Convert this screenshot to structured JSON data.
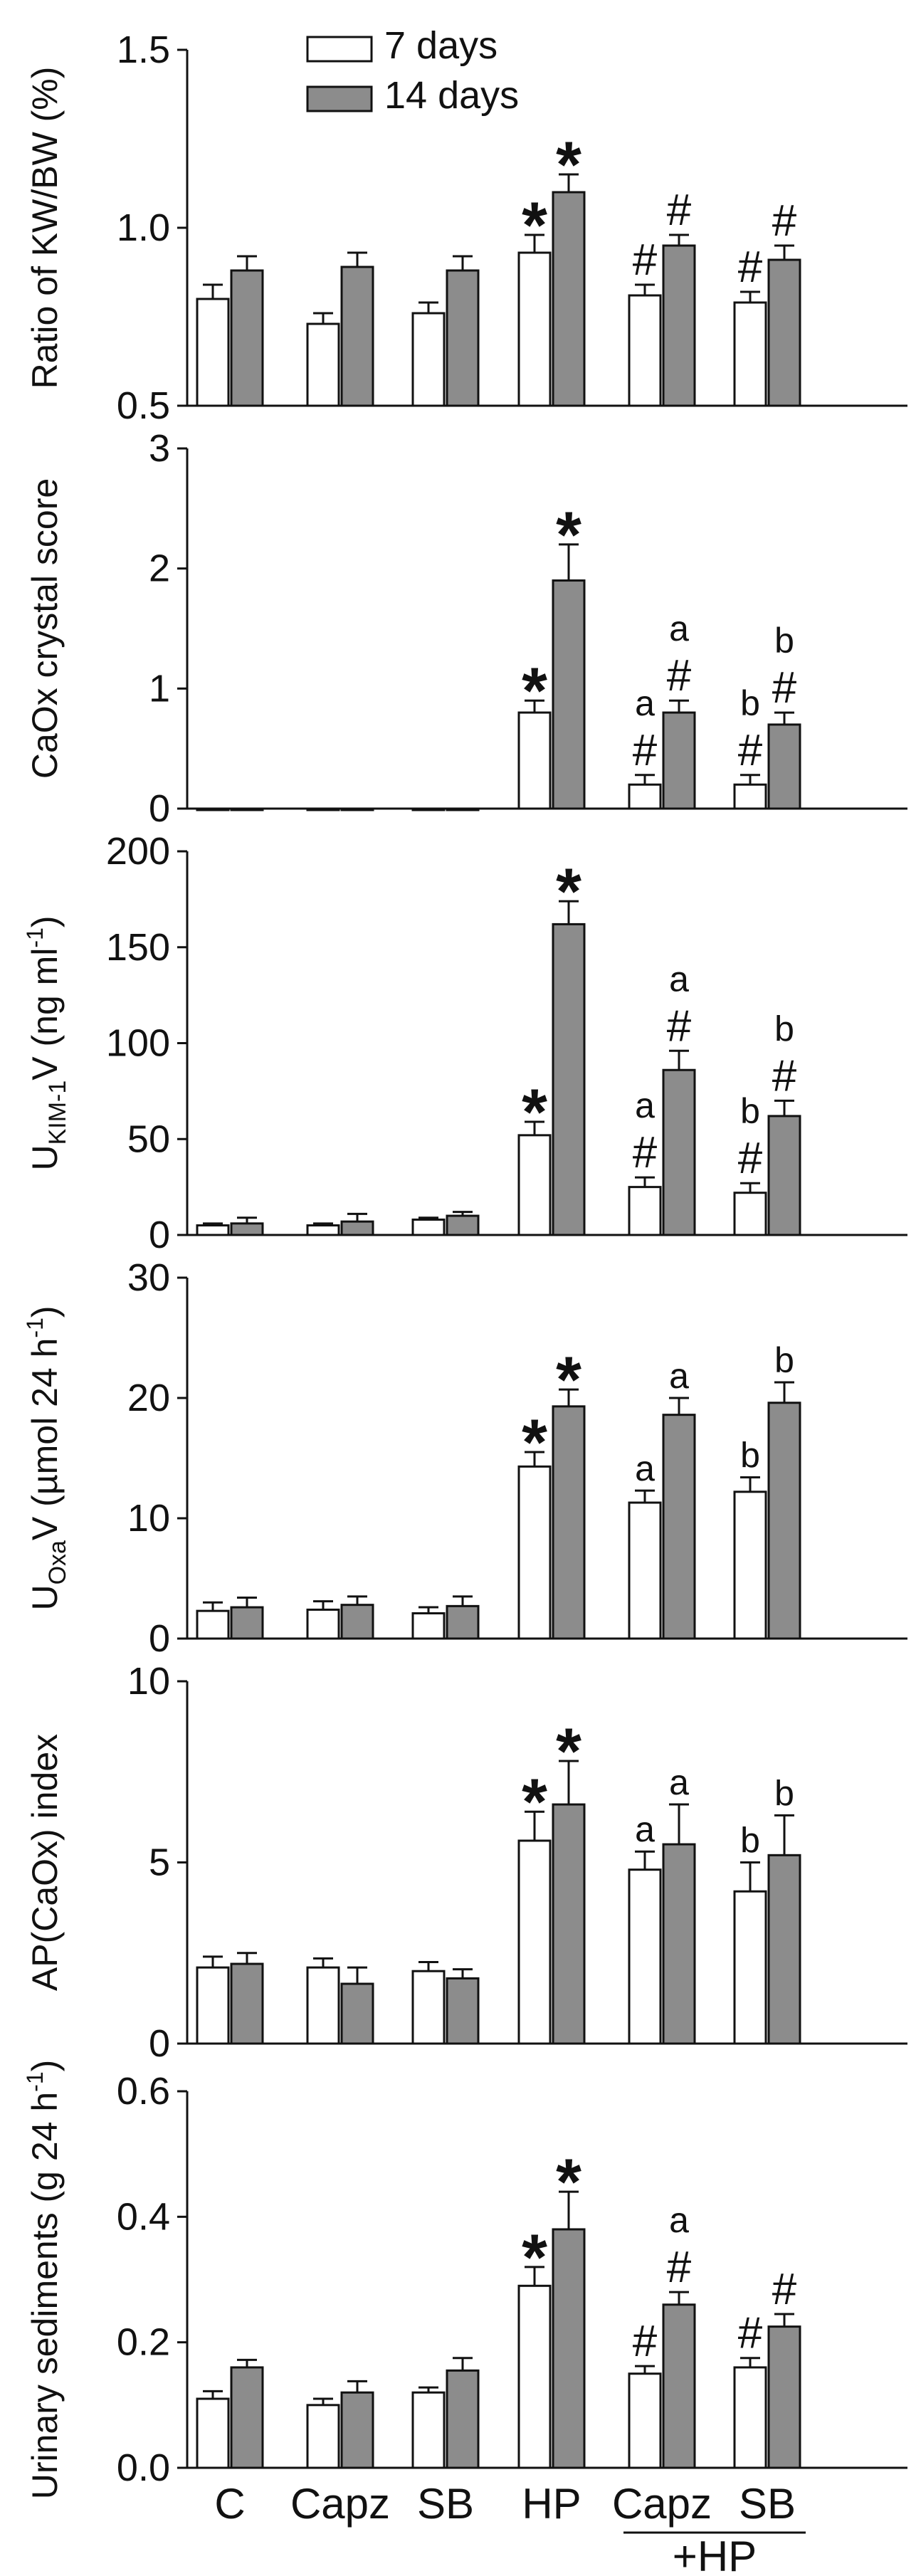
{
  "colors": {
    "series_7d": "#ffffff",
    "series_14d": "#8c8c8c",
    "stroke": "#111111"
  },
  "categories": [
    "C",
    "Capz",
    "SB",
    "HP",
    "Capz",
    "SB"
  ],
  "group_label": "+HP",
  "legend": [
    "7 days",
    "14 days"
  ],
  "chart_data": [
    {
      "type": "bar",
      "id": "kw",
      "ylabel": "Ratio of KW/BW (%)",
      "ylim": [
        0.5,
        1.5
      ],
      "yticks": [
        "0.5",
        "1.0",
        "1.5"
      ],
      "ytick_values": [
        0.5,
        1.0,
        1.5
      ],
      "series": [
        {
          "name": "7 days",
          "values": [
            0.8,
            0.73,
            0.76,
            0.93,
            0.81,
            0.79
          ],
          "errors": [
            0.04,
            0.03,
            0.03,
            0.05,
            0.03,
            0.03
          ]
        },
        {
          "name": "14 days",
          "values": [
            0.88,
            0.89,
            0.88,
            1.1,
            0.95,
            0.91
          ],
          "errors": [
            0.04,
            0.04,
            0.04,
            0.05,
            0.03,
            0.04
          ]
        }
      ],
      "annotations": [
        {
          "cat": 3,
          "series": 0,
          "marks": [
            "*"
          ]
        },
        {
          "cat": 3,
          "series": 1,
          "marks": [
            "*"
          ]
        },
        {
          "cat": 4,
          "series": 0,
          "marks": [
            "#"
          ]
        },
        {
          "cat": 4,
          "series": 1,
          "marks": [
            "#"
          ]
        },
        {
          "cat": 5,
          "series": 0,
          "marks": [
            "#"
          ]
        },
        {
          "cat": 5,
          "series": 1,
          "marks": [
            "#"
          ]
        }
      ]
    },
    {
      "type": "bar",
      "id": "crystal",
      "ylabel": "CaOx crystal score",
      "ylim": [
        0,
        3
      ],
      "yticks": [
        "0",
        "1",
        "2",
        "3"
      ],
      "ytick_values": [
        0,
        1,
        2,
        3
      ],
      "series": [
        {
          "name": "7 days",
          "values": [
            0,
            0,
            0,
            0.8,
            0.2,
            0.2
          ],
          "errors": [
            0,
            0,
            0,
            0.1,
            0.08,
            0.08
          ]
        },
        {
          "name": "14 days",
          "values": [
            0,
            0,
            0,
            1.9,
            0.8,
            0.7
          ],
          "errors": [
            0,
            0,
            0,
            0.3,
            0.1,
            0.1
          ]
        }
      ],
      "annotations": [
        {
          "cat": 3,
          "series": 0,
          "marks": [
            "*"
          ]
        },
        {
          "cat": 3,
          "series": 1,
          "marks": [
            "*"
          ]
        },
        {
          "cat": 4,
          "series": 0,
          "marks": [
            "#",
            "a"
          ]
        },
        {
          "cat": 4,
          "series": 1,
          "marks": [
            "#",
            "a"
          ]
        },
        {
          "cat": 5,
          "series": 0,
          "marks": [
            "#",
            "b"
          ]
        },
        {
          "cat": 5,
          "series": 1,
          "marks": [
            "#",
            "b"
          ]
        }
      ]
    },
    {
      "type": "bar",
      "id": "kim",
      "ylabel_main": "U",
      "ylabel_sub": "KIM-1",
      "ylabel_rest": "V (ng ml",
      "ylabel_sup": "-1",
      "ylabel_end": ")",
      "ylim": [
        0,
        200
      ],
      "yticks": [
        "0",
        "50",
        "100",
        "150",
        "200"
      ],
      "ytick_values": [
        0,
        50,
        100,
        150,
        200
      ],
      "series": [
        {
          "name": "7 days",
          "values": [
            5,
            5,
            8,
            52,
            25,
            22
          ],
          "errors": [
            1,
            1,
            1,
            7,
            5,
            5
          ]
        },
        {
          "name": "14 days",
          "values": [
            6,
            7,
            10,
            162,
            86,
            62
          ],
          "errors": [
            3,
            4,
            2,
            12,
            10,
            8
          ]
        }
      ],
      "annotations": [
        {
          "cat": 3,
          "series": 0,
          "marks": [
            "*"
          ]
        },
        {
          "cat": 3,
          "series": 1,
          "marks": [
            "*"
          ]
        },
        {
          "cat": 4,
          "series": 0,
          "marks": [
            "#",
            "a"
          ]
        },
        {
          "cat": 4,
          "series": 1,
          "marks": [
            "#",
            "a"
          ]
        },
        {
          "cat": 5,
          "series": 0,
          "marks": [
            "#",
            "b"
          ]
        },
        {
          "cat": 5,
          "series": 1,
          "marks": [
            "#",
            "b"
          ]
        }
      ]
    },
    {
      "type": "bar",
      "id": "oxa",
      "ylabel_main": "U",
      "ylabel_sub": "Oxa",
      "ylabel_rest": "V (µmol 24 h",
      "ylabel_sup": "-1",
      "ylabel_end": ")",
      "ylim": [
        0,
        30
      ],
      "yticks": [
        "0",
        "10",
        "20",
        "30"
      ],
      "ytick_values": [
        0,
        10,
        20,
        30
      ],
      "series": [
        {
          "name": "7 days",
          "values": [
            2.3,
            2.4,
            2.1,
            14.3,
            11.3,
            12.2
          ],
          "errors": [
            0.7,
            0.7,
            0.5,
            1.2,
            1.0,
            1.2
          ]
        },
        {
          "name": "14 days",
          "values": [
            2.6,
            2.8,
            2.7,
            19.3,
            18.6,
            19.6
          ],
          "errors": [
            0.8,
            0.7,
            0.8,
            1.4,
            1.4,
            1.7
          ]
        }
      ],
      "annotations": [
        {
          "cat": 3,
          "series": 0,
          "marks": [
            "*"
          ]
        },
        {
          "cat": 3,
          "series": 1,
          "marks": [
            "*"
          ]
        },
        {
          "cat": 4,
          "series": 0,
          "marks": [
            "a"
          ]
        },
        {
          "cat": 4,
          "series": 1,
          "marks": [
            "a"
          ]
        },
        {
          "cat": 5,
          "series": 0,
          "marks": [
            "b"
          ]
        },
        {
          "cat": 5,
          "series": 1,
          "marks": [
            "b"
          ]
        }
      ]
    },
    {
      "type": "bar",
      "id": "ap",
      "ylabel": "AP(CaOx) index",
      "ylim": [
        0,
        10
      ],
      "yticks": [
        "0",
        "5",
        "10"
      ],
      "ytick_values": [
        0,
        5,
        10
      ],
      "series": [
        {
          "name": "7 days",
          "values": [
            2.1,
            2.1,
            2.0,
            5.6,
            4.8,
            4.2
          ],
          "errors": [
            0.3,
            0.25,
            0.25,
            0.8,
            0.5,
            0.8
          ]
        },
        {
          "name": "14 days",
          "values": [
            2.2,
            1.65,
            1.8,
            6.6,
            5.5,
            5.2
          ],
          "errors": [
            0.3,
            0.45,
            0.25,
            1.2,
            1.1,
            1.1
          ]
        }
      ],
      "annotations": [
        {
          "cat": 3,
          "series": 0,
          "marks": [
            "*"
          ]
        },
        {
          "cat": 3,
          "series": 1,
          "marks": [
            "*"
          ]
        },
        {
          "cat": 4,
          "series": 0,
          "marks": [
            "a"
          ]
        },
        {
          "cat": 4,
          "series": 1,
          "marks": [
            "a"
          ]
        },
        {
          "cat": 5,
          "series": 0,
          "marks": [
            "b"
          ]
        },
        {
          "cat": 5,
          "series": 1,
          "marks": [
            "b"
          ]
        }
      ]
    },
    {
      "type": "bar",
      "id": "sed",
      "ylabel_main": "Urinary sediments (g 24 h",
      "ylabel_sup": "-1",
      "ylabel_end": ")",
      "ylim": [
        0,
        0.6
      ],
      "yticks": [
        "0.0",
        "0.2",
        "0.4",
        "0.6"
      ],
      "ytick_values": [
        0,
        0.2,
        0.4,
        0.6
      ],
      "series": [
        {
          "name": "7 days",
          "values": [
            0.11,
            0.1,
            0.12,
            0.29,
            0.15,
            0.16
          ],
          "errors": [
            0.012,
            0.01,
            0.008,
            0.03,
            0.012,
            0.015
          ]
        },
        {
          "name": "14 days",
          "values": [
            0.16,
            0.12,
            0.155,
            0.38,
            0.26,
            0.225
          ],
          "errors": [
            0.012,
            0.018,
            0.02,
            0.06,
            0.02,
            0.02
          ]
        }
      ],
      "annotations": [
        {
          "cat": 3,
          "series": 0,
          "marks": [
            "*"
          ]
        },
        {
          "cat": 3,
          "series": 1,
          "marks": [
            "*"
          ]
        },
        {
          "cat": 4,
          "series": 0,
          "marks": [
            "#"
          ]
        },
        {
          "cat": 4,
          "series": 1,
          "marks": [
            "#",
            "a"
          ]
        },
        {
          "cat": 5,
          "series": 0,
          "marks": [
            "#"
          ]
        },
        {
          "cat": 5,
          "series": 1,
          "marks": [
            "#"
          ]
        }
      ]
    }
  ]
}
